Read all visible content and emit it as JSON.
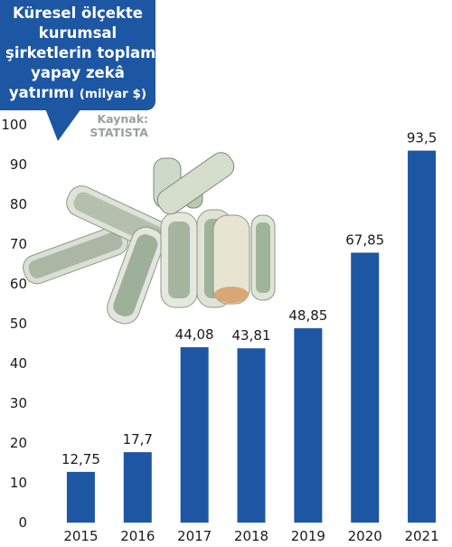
{
  "header": {
    "title_lines": [
      "Küresel ölçekte",
      "kurumsal",
      "şirketlerin toplam",
      "yapay zekâ",
      "yatırımı"
    ],
    "title_unit": "(milyar $)",
    "source_label": "Kaynak:",
    "source_name": "STATISTA"
  },
  "colors": {
    "bar": "#1d57a3",
    "title_bg": "#1d57a3",
    "source": "#9b9ea3"
  },
  "decoration": "money-rolls-illustration",
  "chart_data": {
    "type": "bar",
    "title": "Küresel ölçekte kurumsal şirketlerin toplam yapay zekâ yatırımı (milyar $)",
    "categories": [
      "2015",
      "2016",
      "2017",
      "2018",
      "2019",
      "2020",
      "2021"
    ],
    "values": [
      12.75,
      17.7,
      44.08,
      43.81,
      48.85,
      67.85,
      93.5
    ],
    "value_labels": [
      "12,75",
      "17,7",
      "44,08",
      "43,81",
      "48,85",
      "67,85",
      "93,5"
    ],
    "yticks": [
      0,
      10,
      20,
      30,
      40,
      50,
      60,
      70,
      80,
      90,
      100
    ],
    "ylim": [
      0,
      100
    ],
    "xlabel": "",
    "ylabel": "",
    "grid": false,
    "legend": "none"
  }
}
